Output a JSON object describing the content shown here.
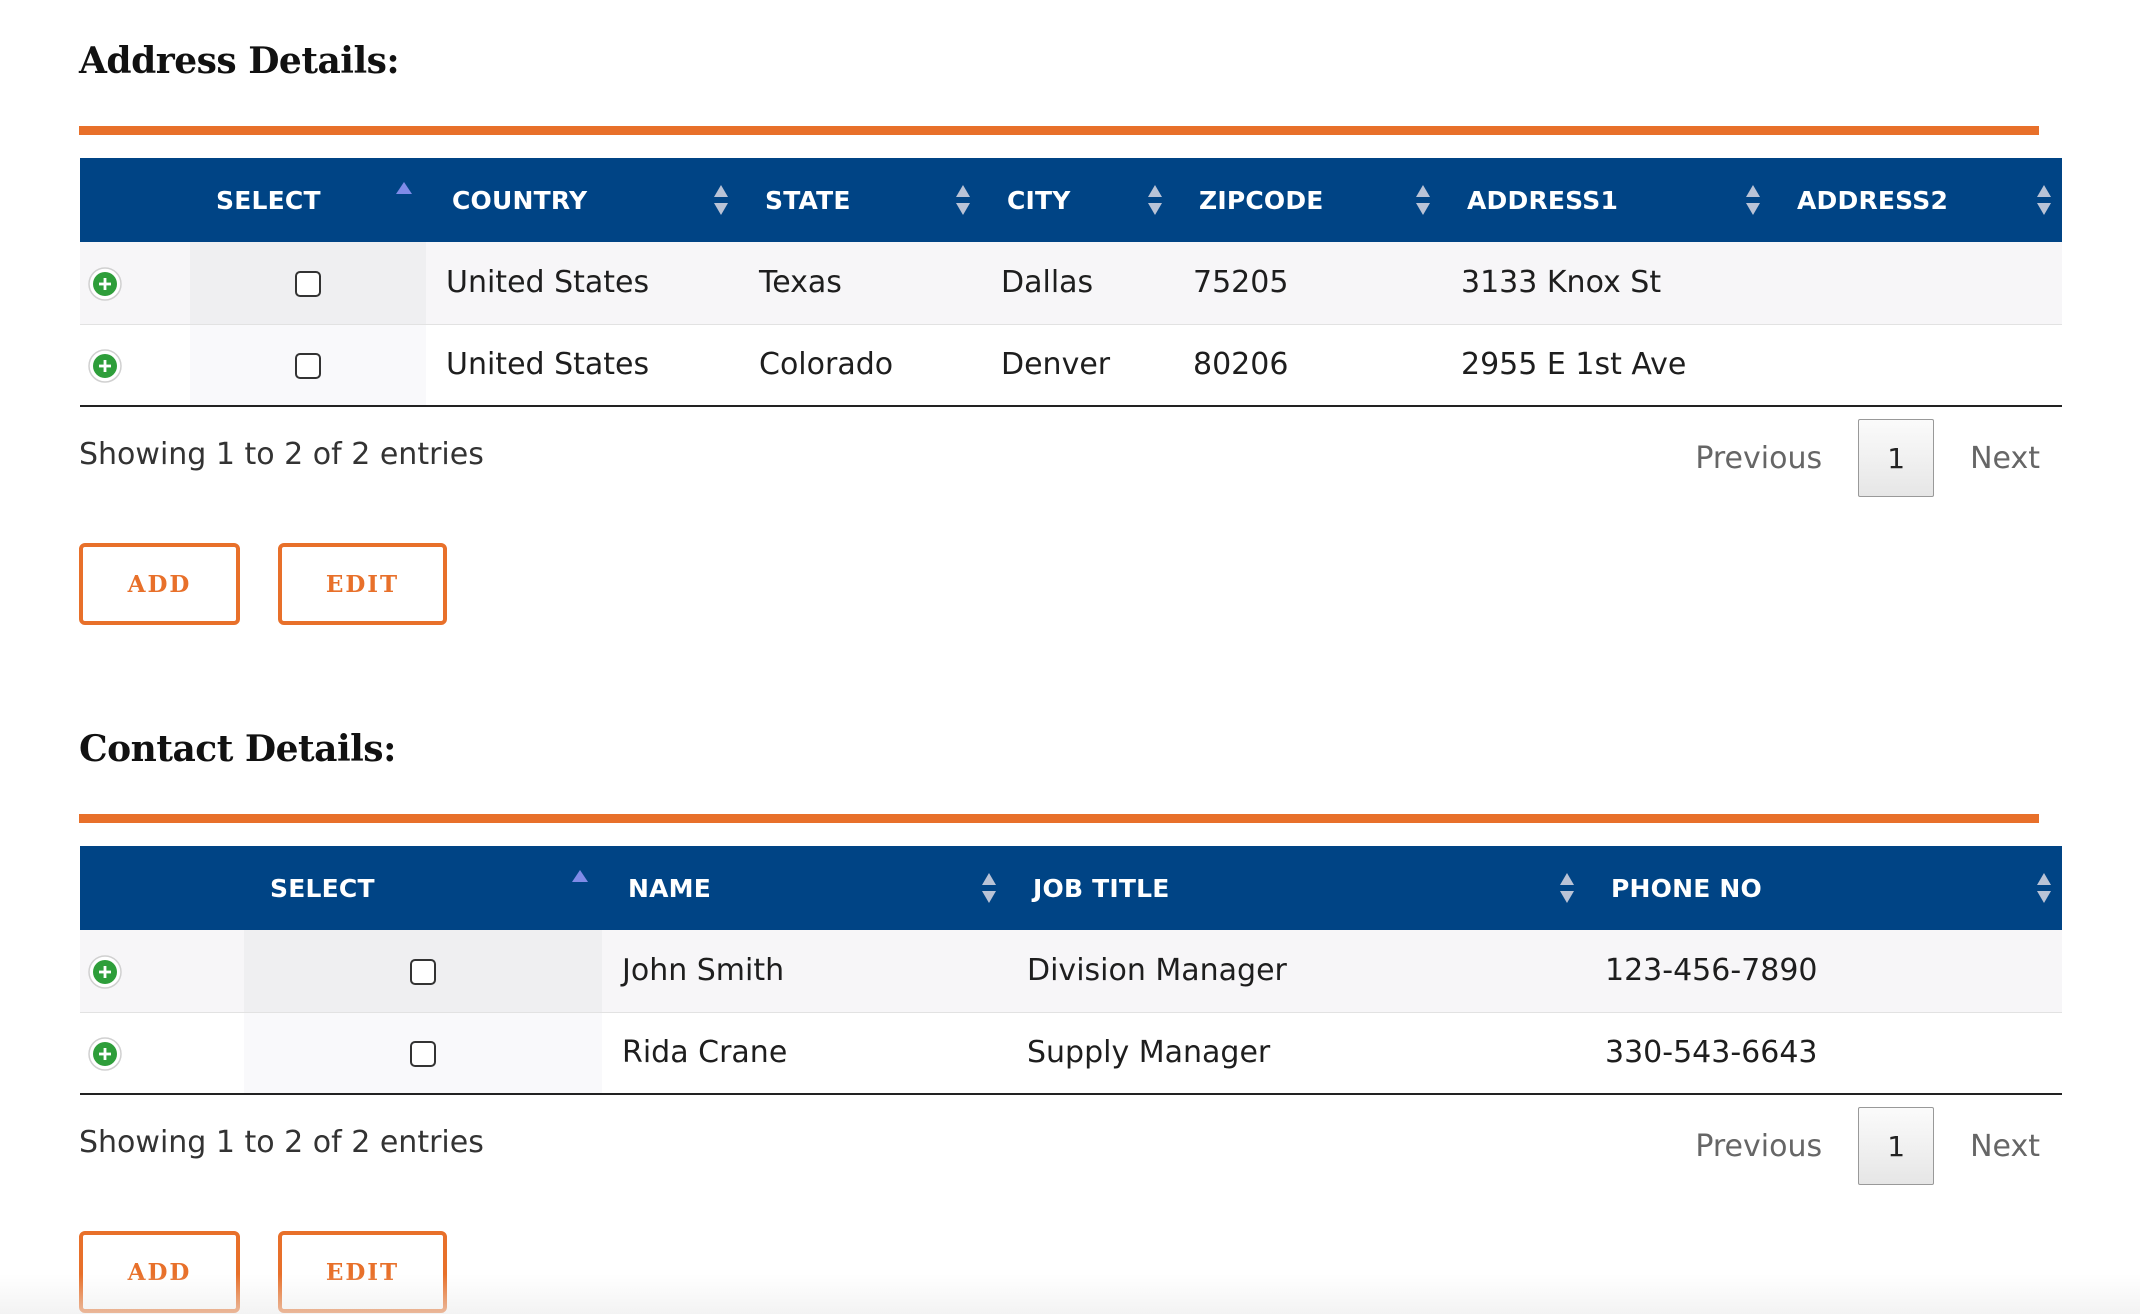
{
  "address": {
    "title": "Address Details:",
    "columns": [
      "SELECT",
      "COUNTRY",
      "STATE",
      "CITY",
      "ZIPCODE",
      "ADDRESS1",
      "ADDRESS2"
    ],
    "rows": [
      {
        "country": "United States",
        "state": "Texas",
        "city": "Dallas",
        "zipcode": "75205",
        "address1": "3133 Knox St",
        "address2": ""
      },
      {
        "country": "United States",
        "state": "Colorado",
        "city": "Denver",
        "zipcode": "80206",
        "address1": "2955 E 1st Ave",
        "address2": ""
      }
    ],
    "info": "Showing 1 to 2 of 2 entries",
    "pager": {
      "previous": "Previous",
      "page": "1",
      "next": "Next"
    },
    "buttons": {
      "add": "ADD",
      "edit": "EDIT"
    }
  },
  "contact": {
    "title": "Contact Details:",
    "columns": [
      "SELECT",
      "NAME",
      "JOB TITLE",
      "PHONE NO"
    ],
    "rows": [
      {
        "name": "John Smith",
        "job_title": "Division Manager",
        "phone": "123-456-7890"
      },
      {
        "name": "Rida Crane",
        "job_title": "Supply Manager",
        "phone": "330-543-6643"
      }
    ],
    "info": "Showing 1 to 2 of 2 entries",
    "pager": {
      "previous": "Previous",
      "page": "1",
      "next": "Next"
    },
    "buttons": {
      "add": "ADD",
      "edit": "EDIT"
    }
  },
  "colors": {
    "accent": "#e8702a",
    "header": "#004485",
    "expand_icon": "#2e9e3a"
  },
  "icons": {
    "expand": "plus-circle-icon",
    "sort": "sort-both-icon",
    "sort_asc": "sort-asc-icon",
    "checkbox": "checkbox-icon"
  }
}
